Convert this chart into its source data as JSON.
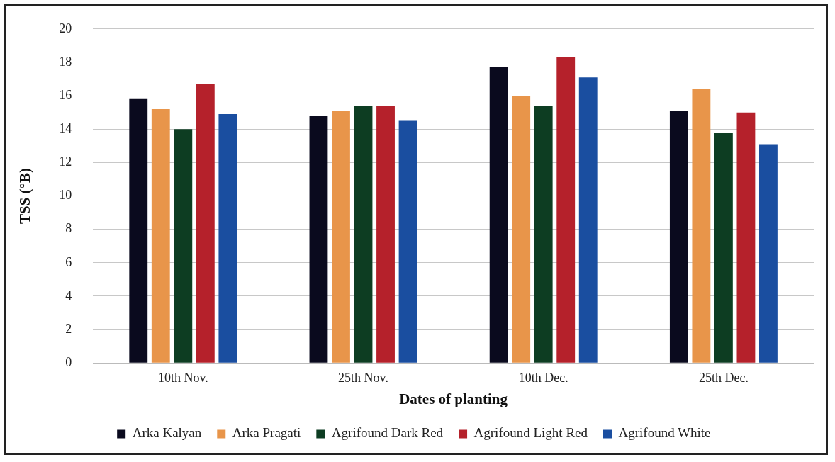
{
  "chart_data": {
    "type": "bar",
    "xlabel": "Dates of planting",
    "ylabel": "TSS (°B)",
    "categories": [
      "10th Nov.",
      "25th Nov.",
      "10th Dec.",
      "25th Dec."
    ],
    "series": [
      {
        "name": "Arka Kalyan",
        "color": "#0a0a1e",
        "values": [
          15.8,
          14.8,
          17.7,
          15.1
        ]
      },
      {
        "name": "Arka Pragati",
        "color": "#e8954a",
        "values": [
          15.2,
          15.1,
          16.0,
          16.4
        ]
      },
      {
        "name": "Agrifound Dark Red",
        "color": "#0d3d22",
        "values": [
          14.0,
          15.4,
          15.4,
          13.8
        ]
      },
      {
        "name": "Agrifound Light Red",
        "color": "#b5212b",
        "values": [
          16.7,
          15.4,
          18.3,
          15.0
        ]
      },
      {
        "name": "Agrifound White",
        "color": "#1a4ea0",
        "values": [
          14.9,
          14.5,
          17.1,
          13.1
        ]
      }
    ],
    "ylim": [
      0,
      20
    ],
    "yticks": [
      0,
      2,
      4,
      6,
      8,
      10,
      12,
      14,
      16,
      18,
      20
    ],
    "grid": "y",
    "legend": "bottom"
  }
}
